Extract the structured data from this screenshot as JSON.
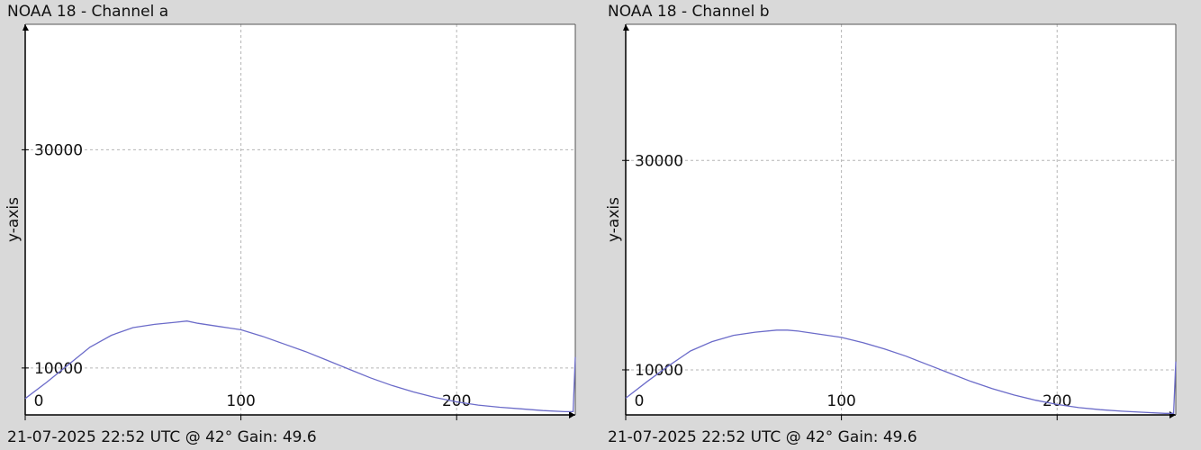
{
  "panels": [
    {
      "title": "NOAA 18 - Channel a",
      "footer": "21-07-2025 22:52 UTC @ 42° Gain: 49.6"
    },
    {
      "title": "NOAA 18 - Channel b",
      "footer": "21-07-2025 22:52 UTC @ 42° Gain: 49.6"
    }
  ],
  "chart_data": [
    {
      "type": "line",
      "title": "NOAA 18 - Channel a",
      "xlabel": "",
      "ylabel": "y-axis",
      "xlim": [
        0,
        255
      ],
      "ylim": [
        5700,
        41500
      ],
      "xticks": [
        0,
        100,
        200
      ],
      "yticks": [
        10000,
        30000
      ],
      "grid": true,
      "color": "#6b6bc9",
      "x": [
        0,
        10,
        20,
        30,
        40,
        50,
        60,
        70,
        75,
        80,
        90,
        100,
        110,
        120,
        130,
        140,
        150,
        160,
        170,
        180,
        190,
        200,
        210,
        220,
        230,
        240,
        250,
        254,
        255
      ],
      "y": [
        7200,
        8700,
        10300,
        11900,
        13000,
        13700,
        14000,
        14200,
        14300,
        14100,
        13800,
        13500,
        12900,
        12200,
        11500,
        10700,
        9900,
        9100,
        8400,
        7800,
        7300,
        6900,
        6600,
        6400,
        6250,
        6100,
        6000,
        6000,
        11000
      ]
    },
    {
      "type": "line",
      "title": "NOAA 18 - Channel b",
      "xlabel": "",
      "ylabel": "y-axis",
      "xlim": [
        0,
        255
      ],
      "ylim": [
        5700,
        43000
      ],
      "xticks": [
        0,
        100,
        200
      ],
      "yticks": [
        10000,
        30000
      ],
      "grid": true,
      "color": "#6b6bc9",
      "x": [
        0,
        10,
        20,
        30,
        40,
        50,
        60,
        70,
        75,
        80,
        90,
        100,
        110,
        120,
        130,
        140,
        150,
        160,
        170,
        180,
        190,
        200,
        210,
        220,
        230,
        240,
        250,
        254,
        255
      ],
      "y": [
        7300,
        8900,
        10400,
        11800,
        12700,
        13300,
        13600,
        13800,
        13800,
        13700,
        13400,
        13100,
        12600,
        12000,
        11300,
        10500,
        9700,
        8900,
        8200,
        7600,
        7100,
        6700,
        6400,
        6200,
        6050,
        5950,
        5850,
        5850,
        10800
      ]
    }
  ]
}
